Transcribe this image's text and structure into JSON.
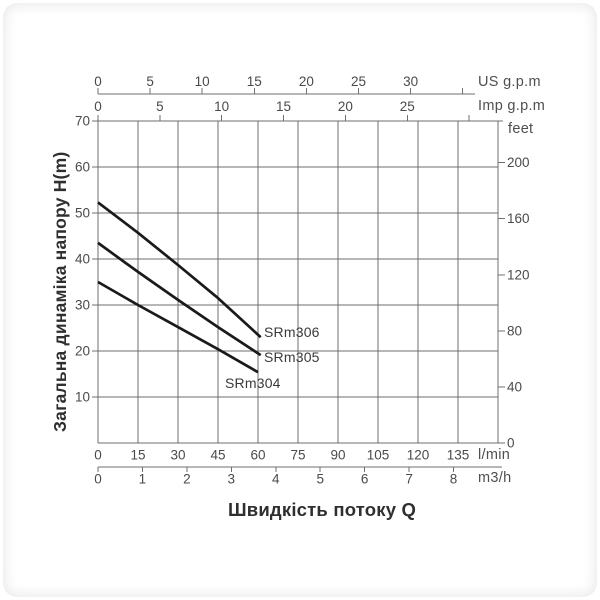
{
  "chart": {
    "y_axis_title": "Загальна динаміка напору H(m)",
    "x_axis_title": "Швидкість потоку Q",
    "units": {
      "us_gpm": "US g.p.m",
      "imp_gpm": "Imp g.p.m",
      "feet": "feet",
      "lmin": "l/min",
      "m3h": "m3/h"
    }
  },
  "chart_data": {
    "type": "line",
    "title": "",
    "xlabel": "Швидкість потоку Q",
    "ylabel": "Загальна динаміка напору H(m)",
    "grid": true,
    "x_range_lmin": [
      0,
      150
    ],
    "y_range_m": [
      0,
      70
    ],
    "axes": {
      "top_us_gpm": {
        "label": "US g.p.m",
        "ticks": [
          0,
          5,
          10,
          15,
          20,
          25,
          30
        ],
        "unlabeled_extra_tick": 35
      },
      "top_imp_gpm": {
        "label": "Imp g.p.m",
        "ticks": [
          0,
          5,
          10,
          15,
          20,
          25
        ],
        "unlabeled_extra_tick": 30
      },
      "bottom_lmin": {
        "label": "l/min",
        "ticks": [
          0,
          15,
          30,
          45,
          60,
          75,
          90,
          105,
          120,
          135
        ]
      },
      "bottom_m3h": {
        "label": "m3/h",
        "ticks": [
          0,
          1,
          2,
          3,
          4,
          5,
          6,
          7,
          8
        ]
      },
      "left_m": {
        "label": "Загальна динаміка напору H(m)",
        "ticks": [
          10,
          20,
          30,
          40,
          50,
          60,
          70
        ]
      },
      "right_feet": {
        "label": "feet",
        "ticks": [
          0,
          40,
          80,
          120,
          160,
          200
        ]
      }
    },
    "series": [
      {
        "name": "SRm306",
        "points_lmin_m": [
          [
            0,
            52.3
          ],
          [
            15,
            45.7
          ],
          [
            30,
            38.7
          ],
          [
            45,
            31.5
          ],
          [
            61,
            23.0
          ]
        ]
      },
      {
        "name": "SRm305",
        "points_lmin_m": [
          [
            0,
            43.5
          ],
          [
            15,
            37.2
          ],
          [
            30,
            31.1
          ],
          [
            45,
            25.2
          ],
          [
            61,
            19.1
          ]
        ]
      },
      {
        "name": "SRm304",
        "points_lmin_m": [
          [
            0,
            35.0
          ],
          [
            15,
            30.0
          ],
          [
            30,
            25.2
          ],
          [
            45,
            20.4
          ],
          [
            60,
            15.4
          ]
        ]
      }
    ],
    "colors": {
      "curve": "#1a1a1a",
      "grid": "#6f6f6f",
      "tick_text": "#4a4a4a",
      "title_text": "#2f2f2f",
      "background": "#ffffff"
    }
  }
}
